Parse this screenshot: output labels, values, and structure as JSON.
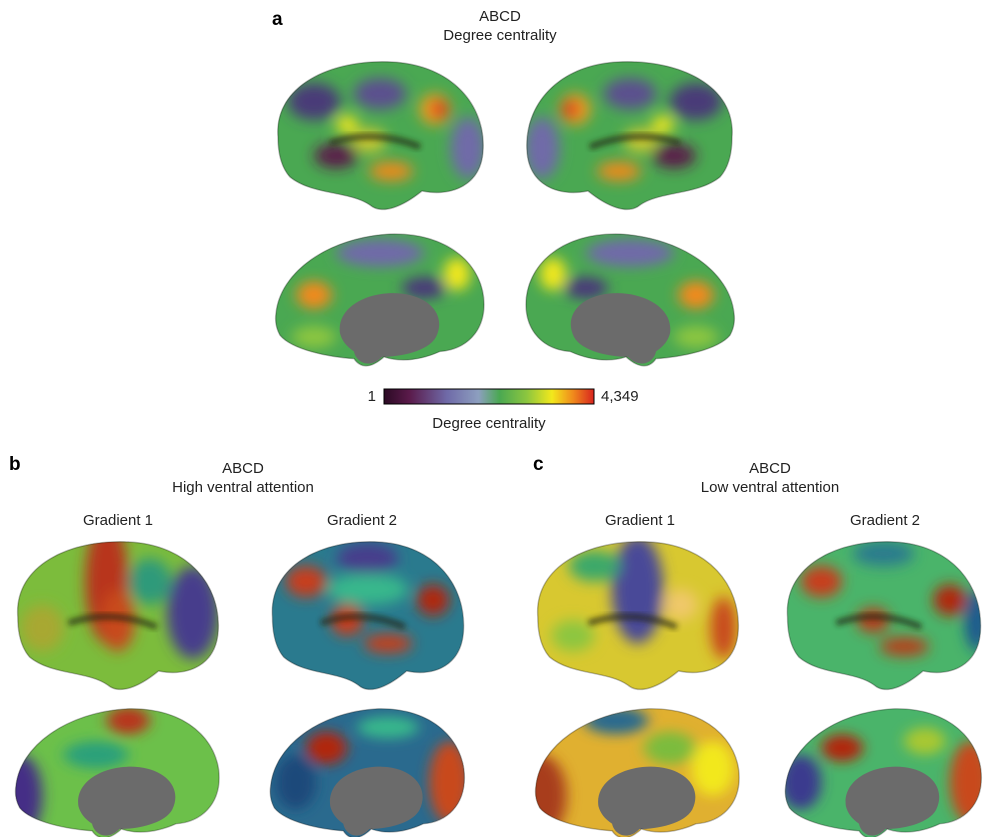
{
  "panel_a": {
    "label": "a",
    "title": "ABCD",
    "subtitle": "Degree centrality",
    "colorbar": {
      "min_label": "1",
      "max_label": "4,349",
      "label": "Degree centrality"
    }
  },
  "panel_b": {
    "label": "b",
    "title": "ABCD",
    "subtitle": "High ventral attention",
    "columns": [
      "Gradient 1",
      "Gradient 2"
    ]
  },
  "panel_c": {
    "label": "c",
    "title": "ABCD",
    "subtitle": "Low ventral attention",
    "columns": [
      "Gradient 1",
      "Gradient 2"
    ]
  }
}
